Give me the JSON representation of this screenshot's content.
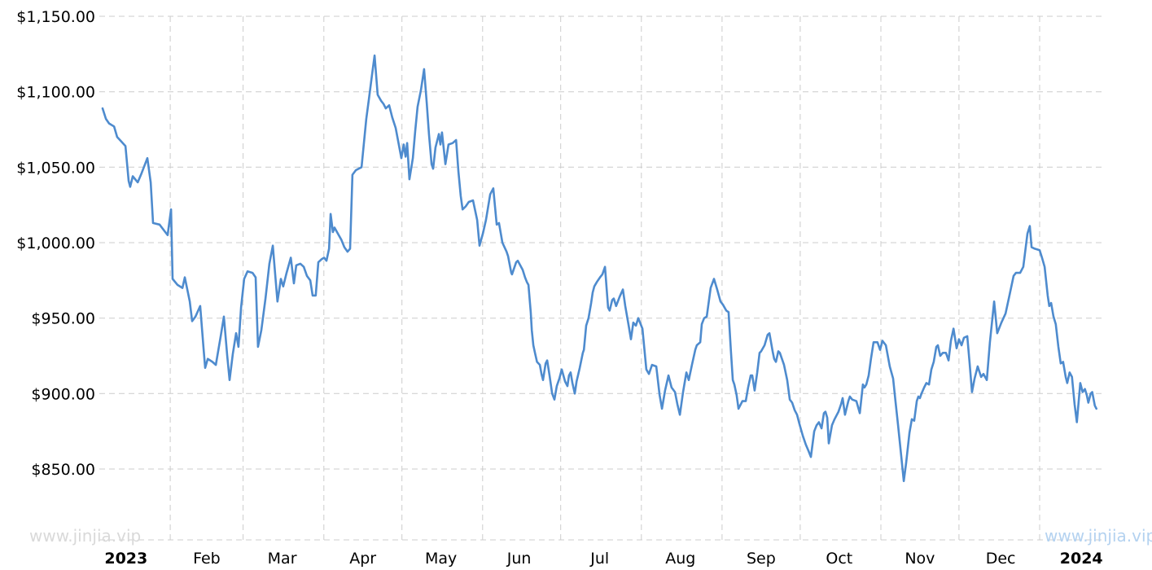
{
  "watermarks": {
    "left": {
      "text": "www.jinjia.vip",
      "color": "#d9d9d9"
    },
    "right": {
      "text": "www.jinjia.vip",
      "color": "#b4d2f0"
    }
  },
  "chart_data": {
    "type": "line",
    "title": "",
    "xlabel": "",
    "ylabel": "",
    "legend": "none",
    "grid": "dashed",
    "series_name": "price",
    "series_color": "#4e8bce",
    "grid_color": "#cccccc",
    "label_color": "#000000",
    "y_axis": {
      "range": [
        850,
        1150
      ],
      "ticks": [
        {
          "label": "$1,150.00",
          "value": 1150
        },
        {
          "label": "$1,100.00",
          "value": 1100
        },
        {
          "label": "$1,050.00",
          "value": 1050
        },
        {
          "label": "$1,000.00",
          "value": 1000
        },
        {
          "label": "$950.00",
          "value": 950
        },
        {
          "label": "$900.00",
          "value": 900
        },
        {
          "label": "$850.00",
          "value": 850
        }
      ]
    },
    "x_axis": {
      "unit": "days since 2023-01-01",
      "range": [
        0,
        389
      ],
      "month_gridline_days": [
        31,
        59,
        90,
        120,
        151,
        181,
        212,
        243,
        273,
        304,
        334,
        365
      ],
      "tick_labels": [
        {
          "label": "2023",
          "day": 14,
          "bold": true
        },
        {
          "label": "Feb",
          "day": 45,
          "bold": false
        },
        {
          "label": "Mar",
          "day": 74,
          "bold": false
        },
        {
          "label": "Apr",
          "day": 105,
          "bold": false
        },
        {
          "label": "May",
          "day": 135,
          "bold": false
        },
        {
          "label": "Jun",
          "day": 165,
          "bold": false
        },
        {
          "label": "Jul",
          "day": 196,
          "bold": false
        },
        {
          "label": "Aug",
          "day": 227,
          "bold": false
        },
        {
          "label": "Sep",
          "day": 258,
          "bold": false
        },
        {
          "label": "Oct",
          "day": 288,
          "bold": false
        },
        {
          "label": "Nov",
          "day": 319,
          "bold": false
        },
        {
          "label": "Dec",
          "day": 350,
          "bold": false
        },
        {
          "label": "2024",
          "day": 381,
          "bold": true
        }
      ]
    },
    "points": [
      [
        5,
        1089
      ],
      [
        6.3,
        1082
      ],
      [
        7.5,
        1079
      ],
      [
        9.4,
        1077
      ],
      [
        10.6,
        1070
      ],
      [
        12.2,
        1067
      ],
      [
        13.8,
        1064
      ],
      [
        15,
        1041
      ],
      [
        15.6,
        1037
      ],
      [
        16.6,
        1044
      ],
      [
        18.5,
        1040
      ],
      [
        20,
        1046
      ],
      [
        22.2,
        1056
      ],
      [
        23.5,
        1040
      ],
      [
        24.4,
        1013
      ],
      [
        26.9,
        1012
      ],
      [
        29.1,
        1007
      ],
      [
        30,
        1005
      ],
      [
        31.3,
        1022
      ],
      [
        31.9,
        976
      ],
      [
        33.8,
        972
      ],
      [
        35.7,
        970
      ],
      [
        36.6,
        977
      ],
      [
        38.5,
        961
      ],
      [
        39.4,
        948
      ],
      [
        40.7,
        951
      ],
      [
        42.5,
        958
      ],
      [
        43.8,
        930
      ],
      [
        44.4,
        917
      ],
      [
        45.4,
        923
      ],
      [
        47.2,
        921
      ],
      [
        48.5,
        919
      ],
      [
        50.4,
        938
      ],
      [
        51.6,
        951
      ],
      [
        52.9,
        925
      ],
      [
        53.8,
        909
      ],
      [
        55,
        926
      ],
      [
        56.3,
        940
      ],
      [
        57.2,
        931
      ],
      [
        58.2,
        957
      ],
      [
        59.4,
        976
      ],
      [
        60.7,
        981
      ],
      [
        62.6,
        980
      ],
      [
        63.8,
        977
      ],
      [
        64.7,
        931
      ],
      [
        66,
        942
      ],
      [
        67.6,
        963
      ],
      [
        69.1,
        986
      ],
      [
        70.4,
        998
      ],
      [
        71.3,
        979
      ],
      [
        72.2,
        961
      ],
      [
        73.5,
        976
      ],
      [
        74.4,
        971
      ],
      [
        75.7,
        980
      ],
      [
        77.3,
        990
      ],
      [
        78.5,
        973
      ],
      [
        79.4,
        985
      ],
      [
        81,
        986
      ],
      [
        82.3,
        984
      ],
      [
        83.5,
        978
      ],
      [
        84.8,
        975
      ],
      [
        85.7,
        965
      ],
      [
        86.9,
        965
      ],
      [
        87.9,
        987
      ],
      [
        89.1,
        989
      ],
      [
        90.1,
        990
      ],
      [
        91,
        988
      ],
      [
        92,
        996
      ],
      [
        92.6,
        1019
      ],
      [
        93.5,
        1007
      ],
      [
        94.1,
        1010
      ],
      [
        95.4,
        1006
      ],
      [
        96.7,
        1002
      ],
      [
        97.9,
        997
      ],
      [
        99.1,
        994
      ],
      [
        100.1,
        996
      ],
      [
        101,
        1045
      ],
      [
        102.3,
        1048
      ],
      [
        104.5,
        1050
      ],
      [
        106.3,
        1082
      ],
      [
        107.3,
        1095
      ],
      [
        108.5,
        1111
      ],
      [
        109.5,
        1124
      ],
      [
        110.7,
        1098
      ],
      [
        112,
        1094
      ],
      [
        112.9,
        1092
      ],
      [
        113.8,
        1089
      ],
      [
        115.1,
        1091
      ],
      [
        116.3,
        1083
      ],
      [
        117.6,
        1076
      ],
      [
        118.9,
        1064
      ],
      [
        119.8,
        1056
      ],
      [
        120.7,
        1065
      ],
      [
        121.4,
        1057
      ],
      [
        122,
        1066
      ],
      [
        122.9,
        1042
      ],
      [
        124.2,
        1056
      ],
      [
        125.1,
        1074
      ],
      [
        126,
        1090
      ],
      [
        127.3,
        1101
      ],
      [
        128.5,
        1115
      ],
      [
        129.5,
        1093
      ],
      [
        130.4,
        1072
      ],
      [
        131.4,
        1052
      ],
      [
        132,
        1049
      ],
      [
        132.9,
        1063
      ],
      [
        134.2,
        1072
      ],
      [
        134.8,
        1065
      ],
      [
        135.4,
        1073
      ],
      [
        136.7,
        1052
      ],
      [
        137.9,
        1065
      ],
      [
        139.5,
        1066
      ],
      [
        140.8,
        1068
      ],
      [
        141.7,
        1047
      ],
      [
        142.6,
        1031
      ],
      [
        143.3,
        1022
      ],
      [
        144.5,
        1024
      ],
      [
        145.7,
        1027
      ],
      [
        147.3,
        1028
      ],
      [
        148.9,
        1015
      ],
      [
        149.8,
        998
      ],
      [
        151.1,
        1006
      ],
      [
        152.3,
        1015
      ],
      [
        153.9,
        1032
      ],
      [
        155.1,
        1036
      ],
      [
        156.4,
        1012
      ],
      [
        157.3,
        1013
      ],
      [
        158.6,
        1000
      ],
      [
        160.2,
        994
      ],
      [
        160.8,
        991
      ],
      [
        162,
        980
      ],
      [
        162.3,
        979
      ],
      [
        163.9,
        987
      ],
      [
        164.5,
        988
      ],
      [
        166.4,
        982
      ],
      [
        167.3,
        977
      ],
      [
        168,
        974
      ],
      [
        168.6,
        972
      ],
      [
        169.5,
        954
      ],
      [
        169.9,
        942
      ],
      [
        170.5,
        932
      ],
      [
        171.1,
        927
      ],
      [
        171.9,
        921
      ],
      [
        173,
        919
      ],
      [
        173.6,
        913
      ],
      [
        174.2,
        909
      ],
      [
        175.2,
        920
      ],
      [
        175.8,
        922
      ],
      [
        176.7,
        912
      ],
      [
        177.7,
        900
      ],
      [
        178.6,
        896
      ],
      [
        179.5,
        905
      ],
      [
        180.5,
        910
      ],
      [
        181.4,
        916
      ],
      [
        182.7,
        908
      ],
      [
        183.6,
        905
      ],
      [
        184.2,
        912
      ],
      [
        184.8,
        914
      ],
      [
        185.5,
        907
      ],
      [
        186.4,
        900
      ],
      [
        187.1,
        908
      ],
      [
        188.3,
        917
      ],
      [
        189.5,
        927
      ],
      [
        189.9,
        929
      ],
      [
        190.8,
        945
      ],
      [
        191.7,
        950
      ],
      [
        192.7,
        960
      ],
      [
        193.3,
        967
      ],
      [
        193.9,
        971
      ],
      [
        194.9,
        974
      ],
      [
        196.1,
        977
      ],
      [
        197,
        979
      ],
      [
        198,
        984
      ],
      [
        199.2,
        957
      ],
      [
        199.8,
        955
      ],
      [
        200.8,
        962
      ],
      [
        201.4,
        963
      ],
      [
        202.3,
        958
      ],
      [
        203.6,
        964
      ],
      [
        204.9,
        969
      ],
      [
        205.8,
        958
      ],
      [
        207.1,
        945
      ],
      [
        208,
        936
      ],
      [
        208.9,
        947
      ],
      [
        209.9,
        945
      ],
      [
        210.8,
        950
      ],
      [
        212.4,
        943
      ],
      [
        213.9,
        916
      ],
      [
        214.9,
        913
      ],
      [
        216.1,
        919
      ],
      [
        217.7,
        918
      ],
      [
        219,
        899
      ],
      [
        219.9,
        890
      ],
      [
        221.1,
        902
      ],
      [
        222.4,
        912
      ],
      [
        223.6,
        904
      ],
      [
        224.9,
        901
      ],
      [
        225.8,
        893
      ],
      [
        226.8,
        886
      ],
      [
        228,
        901
      ],
      [
        229.3,
        914
      ],
      [
        230.2,
        909
      ],
      [
        231.4,
        919
      ],
      [
        232.7,
        929
      ],
      [
        233.3,
        932
      ],
      [
        234.6,
        934
      ],
      [
        235.2,
        946
      ],
      [
        236.1,
        950
      ],
      [
        237.1,
        951
      ],
      [
        238.6,
        970
      ],
      [
        239.9,
        976
      ],
      [
        241.1,
        969
      ],
      [
        242.4,
        961
      ],
      [
        243.3,
        959
      ],
      [
        244.6,
        955
      ],
      [
        245.5,
        954
      ],
      [
        246.4,
        928
      ],
      [
        247.1,
        909
      ],
      [
        247.7,
        906
      ],
      [
        248.6,
        899
      ],
      [
        249.3,
        890
      ],
      [
        250.2,
        893
      ],
      [
        250.8,
        895
      ],
      [
        252.1,
        895
      ],
      [
        253,
        904
      ],
      [
        254,
        912
      ],
      [
        254.6,
        912
      ],
      [
        255.5,
        902
      ],
      [
        256.5,
        914
      ],
      [
        257.4,
        927
      ],
      [
        258,
        928
      ],
      [
        259.3,
        932
      ],
      [
        260.5,
        939
      ],
      [
        261.2,
        940
      ],
      [
        262.4,
        928
      ],
      [
        263,
        923
      ],
      [
        263.7,
        921
      ],
      [
        264.6,
        928
      ],
      [
        265.2,
        927
      ],
      [
        266.2,
        922
      ],
      [
        266.8,
        919
      ],
      [
        268,
        909
      ],
      [
        269,
        896
      ],
      [
        269.9,
        894
      ],
      [
        270.9,
        889
      ],
      [
        271.8,
        886
      ],
      [
        272.7,
        880
      ],
      [
        274,
        872
      ],
      [
        275.2,
        866
      ],
      [
        276.2,
        862
      ],
      [
        277.1,
        858
      ],
      [
        278.4,
        875
      ],
      [
        279.3,
        879
      ],
      [
        280.2,
        881
      ],
      [
        281.2,
        877
      ],
      [
        282.1,
        887
      ],
      [
        282.7,
        888
      ],
      [
        283.4,
        884
      ],
      [
        284,
        867
      ],
      [
        285.2,
        879
      ],
      [
        286.2,
        883
      ],
      [
        287.7,
        888
      ],
      [
        288.7,
        893
      ],
      [
        289.3,
        897
      ],
      [
        290.2,
        886
      ],
      [
        291.5,
        895
      ],
      [
        292.1,
        898
      ],
      [
        293,
        896
      ],
      [
        294.6,
        895
      ],
      [
        295.9,
        887
      ],
      [
        297.1,
        906
      ],
      [
        297.7,
        904
      ],
      [
        298.4,
        906
      ],
      [
        299.3,
        912
      ],
      [
        300.2,
        923
      ],
      [
        301.2,
        934
      ],
      [
        302.7,
        934
      ],
      [
        303.7,
        929
      ],
      [
        304.6,
        935
      ],
      [
        305.9,
        932
      ],
      [
        307.4,
        918
      ],
      [
        308.7,
        910
      ],
      [
        309.6,
        895
      ],
      [
        310.6,
        879
      ],
      [
        311.8,
        859
      ],
      [
        312.8,
        842
      ],
      [
        313.7,
        854
      ],
      [
        315,
        874
      ],
      [
        315.9,
        883
      ],
      [
        316.8,
        882
      ],
      [
        317.8,
        895
      ],
      [
        318.4,
        898
      ],
      [
        319,
        897
      ],
      [
        319.6,
        900
      ],
      [
        320.6,
        904
      ],
      [
        321.5,
        907
      ],
      [
        322.5,
        906
      ],
      [
        323.4,
        916
      ],
      [
        324.3,
        921
      ],
      [
        325.3,
        931
      ],
      [
        325.9,
        932
      ],
      [
        326.8,
        925
      ],
      [
        327.8,
        927
      ],
      [
        329,
        927
      ],
      [
        330,
        922
      ],
      [
        330.9,
        935
      ],
      [
        331.9,
        943
      ],
      [
        333.1,
        930
      ],
      [
        334,
        936
      ],
      [
        335,
        932
      ],
      [
        335.9,
        937
      ],
      [
        337.2,
        938
      ],
      [
        338.1,
        920
      ],
      [
        339,
        901
      ],
      [
        340,
        910
      ],
      [
        341.2,
        918
      ],
      [
        342.5,
        911
      ],
      [
        343.4,
        913
      ],
      [
        344.7,
        909
      ],
      [
        345.9,
        934
      ],
      [
        347.5,
        961
      ],
      [
        348.7,
        940
      ],
      [
        350.3,
        947
      ],
      [
        351.9,
        953
      ],
      [
        353.4,
        965
      ],
      [
        355,
        978
      ],
      [
        355.9,
        980
      ],
      [
        357.5,
        980
      ],
      [
        358.7,
        984
      ],
      [
        360.3,
        1006
      ],
      [
        361.2,
        1011
      ],
      [
        361.9,
        997
      ],
      [
        363.1,
        996
      ],
      [
        365,
        995
      ],
      [
        365.9,
        990
      ],
      [
        366.9,
        984
      ],
      [
        368.1,
        965
      ],
      [
        368.7,
        958
      ],
      [
        369.4,
        960
      ],
      [
        370.3,
        951
      ],
      [
        371.2,
        946
      ],
      [
        372.2,
        931
      ],
      [
        373.1,
        920
      ],
      [
        374,
        921
      ],
      [
        375,
        911
      ],
      [
        375.6,
        907
      ],
      [
        376.5,
        914
      ],
      [
        377.4,
        911
      ],
      [
        378.4,
        893
      ],
      [
        379.3,
        881
      ],
      [
        380.6,
        907
      ],
      [
        381.5,
        901
      ],
      [
        382.4,
        903
      ],
      [
        383.1,
        899
      ],
      [
        383.7,
        894
      ],
      [
        384.6,
        900
      ],
      [
        385.2,
        901
      ],
      [
        386.2,
        892
      ],
      [
        386.8,
        890
      ]
    ]
  }
}
